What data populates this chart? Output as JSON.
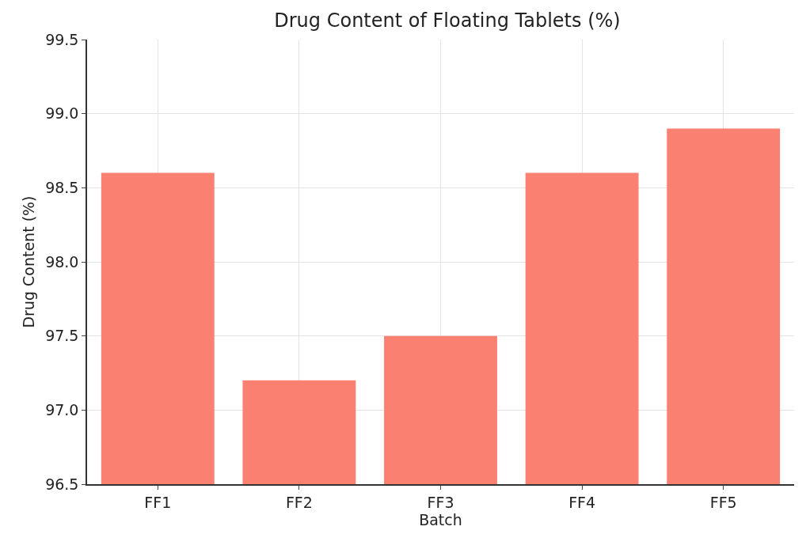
{
  "chart_data": {
    "type": "bar",
    "title": "Drug Content of Floating Tablets (%)",
    "xlabel": "Batch",
    "ylabel": "Drug Content (%)",
    "categories": [
      "FF1",
      "FF2",
      "FF3",
      "FF4",
      "FF5"
    ],
    "values": [
      98.6,
      97.2,
      97.5,
      98.6,
      98.9
    ],
    "color": "#fa8072",
    "ylim": [
      96.5,
      99.5
    ],
    "yticks": [
      {
        "value": 96.5,
        "label": "96.5"
      },
      {
        "value": 97.0,
        "label": "97.0"
      },
      {
        "value": 97.5,
        "label": "97.5"
      },
      {
        "value": 98.0,
        "label": "98.0"
      },
      {
        "value": 98.5,
        "label": "98.5"
      },
      {
        "value": 99.0,
        "label": "99.0"
      },
      {
        "value": 99.5,
        "label": "99.5"
      }
    ],
    "grid": true
  }
}
